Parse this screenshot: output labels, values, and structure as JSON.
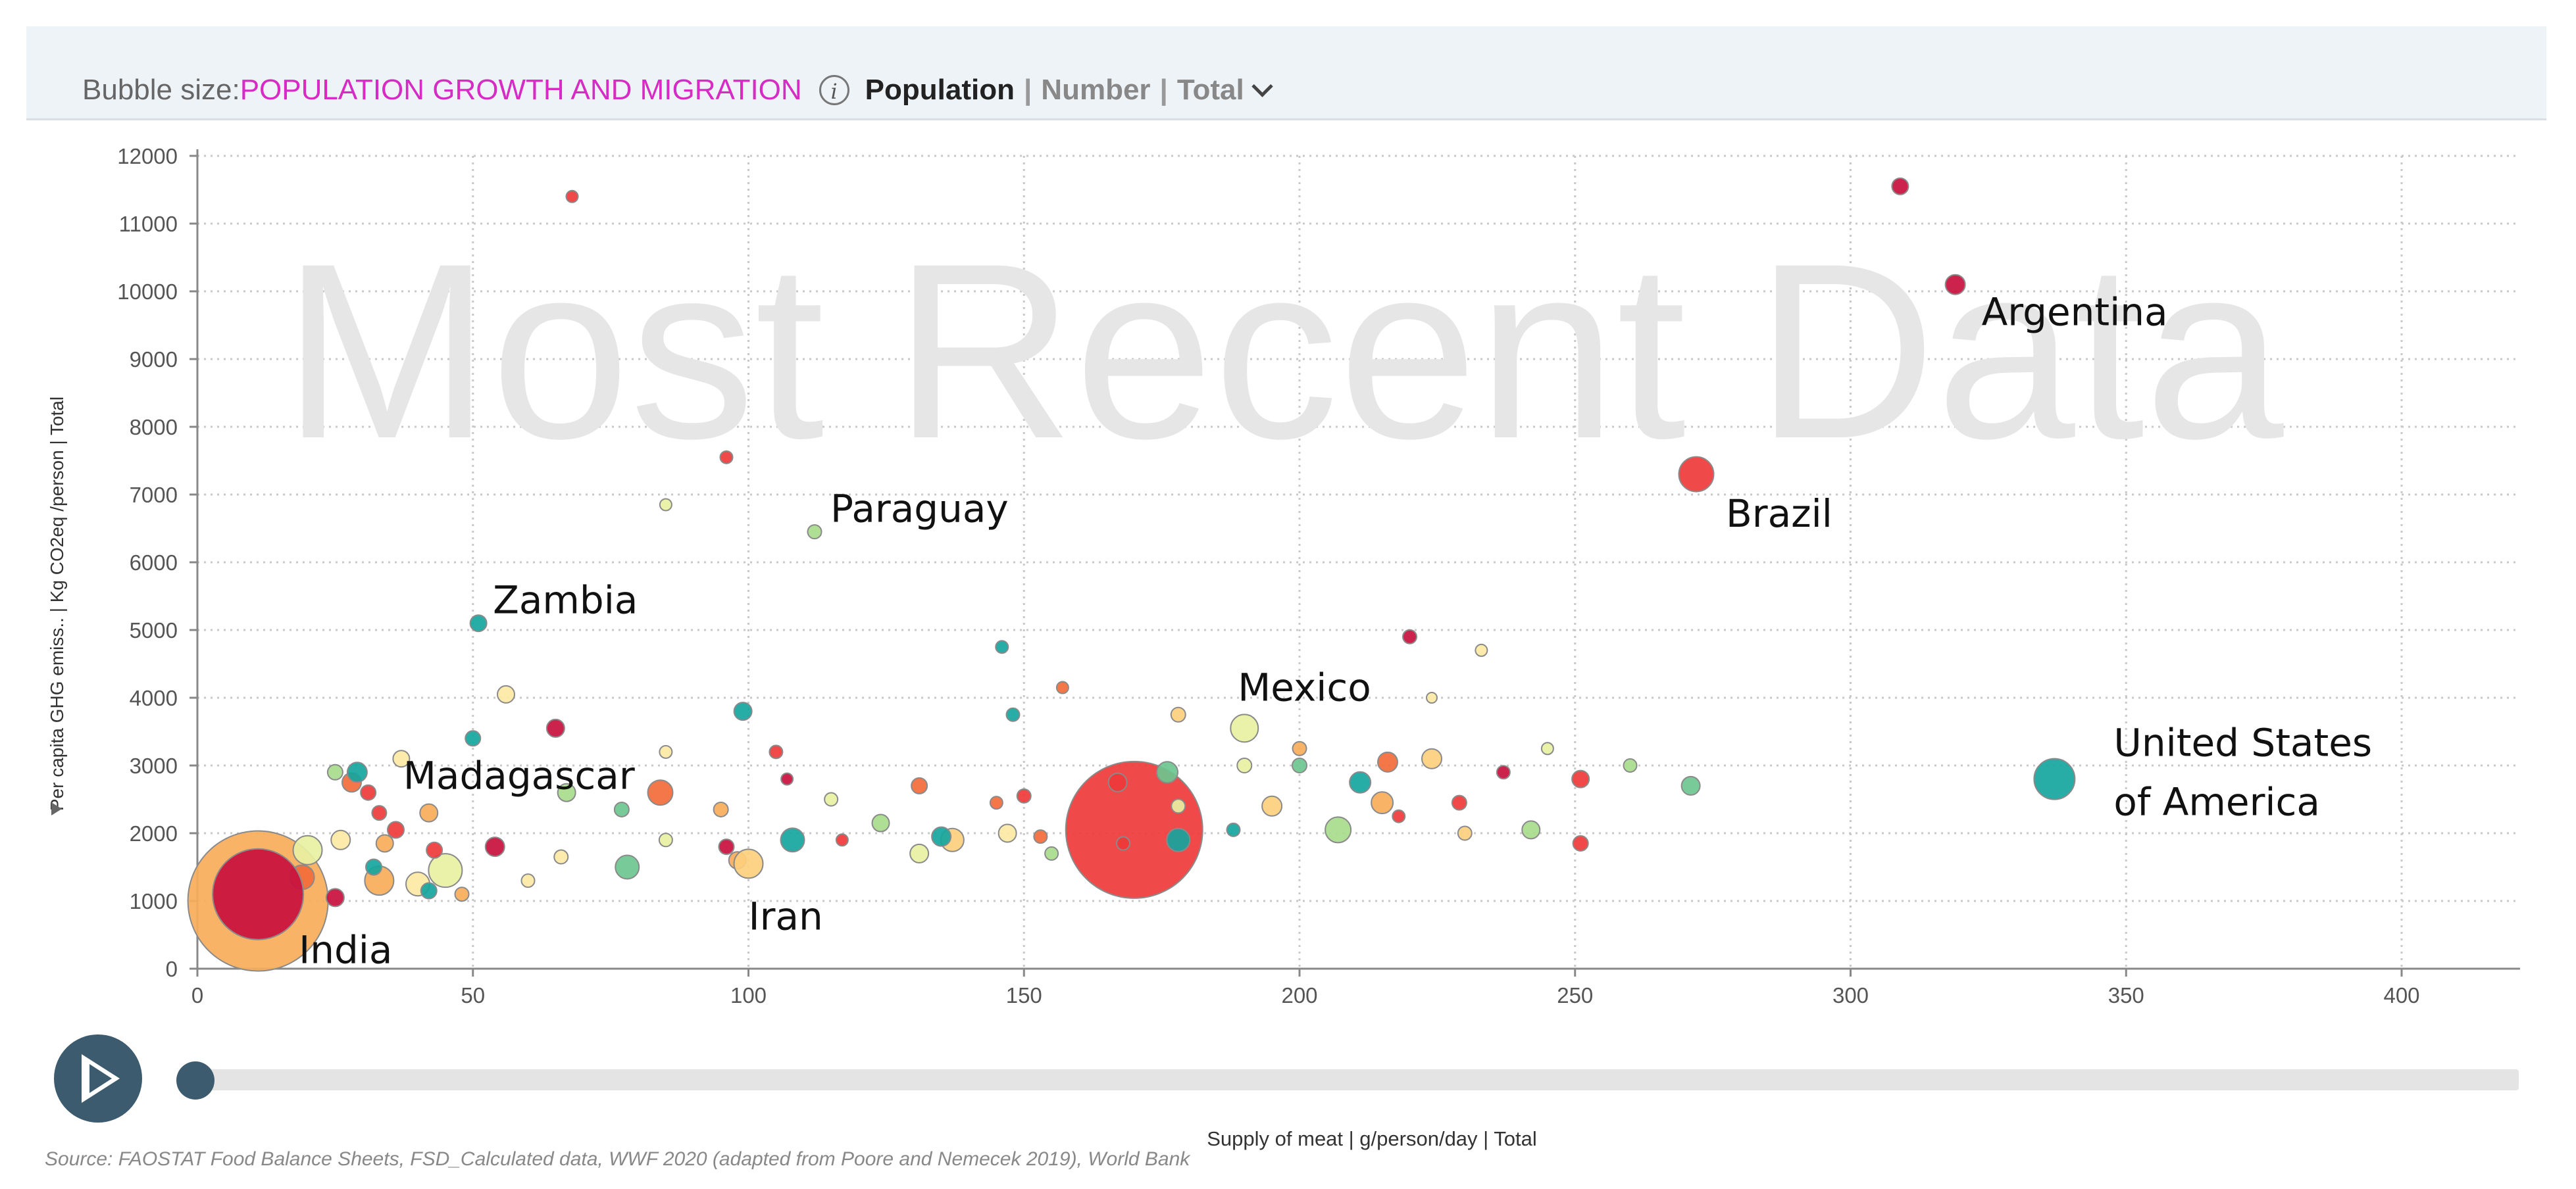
{
  "header": {
    "bubble_size_label": "Bubble size:",
    "bubble_size_value": "POPULATION GROWTH AND MIGRATION",
    "info_glyph": "i",
    "measure": "Population",
    "separator": "|",
    "unit": "Number",
    "aggregation": "Total"
  },
  "footer": {
    "source": "Source: FAOSTAT Food Balance Sheets, FSD_Calculated data, WWF 2020 (adapted from Poore and Nemecek 2019), World Bank"
  },
  "colors": {
    "dark_red": "#c8103e",
    "red": "#ee3a3a",
    "orange": "#f26b3a",
    "light_orange": "#f8ad5a",
    "peach": "#fdcf7e",
    "pale_yellow": "#fde9a5",
    "yellow_green": "#e8f0a2",
    "light_green": "#a8dc8c",
    "green": "#6cc58f",
    "teal": "#15a59e",
    "watermark": "#e6e6e6"
  },
  "chart_data": {
    "type": "scatter",
    "variant": "bubble",
    "watermark": "Most Recent Data",
    "xlabel": "Supply of meat | g/person/day | Total",
    "ylabel": "Per capita GHG emiss.. | Kg CO2eq /person | Total",
    "xlim": [
      0,
      420
    ],
    "ylim": [
      0,
      12000
    ],
    "x_ticks": [
      0,
      50,
      100,
      150,
      200,
      250,
      300,
      350,
      400
    ],
    "y_ticks": [
      0,
      1000,
      2000,
      3000,
      4000,
      5000,
      6000,
      7000,
      8000,
      9000,
      10000,
      11000,
      12000
    ],
    "grid": true,
    "size_encodes": "Population | Number | Total",
    "labeled_points": [
      {
        "label": "India",
        "x": 11,
        "y": 1100,
        "size": 130,
        "color": "dark_red"
      },
      {
        "label": "Iran",
        "x": 100,
        "y": 1550,
        "size": 36,
        "color": "peach"
      },
      {
        "label": "Madagascar",
        "x": 29,
        "y": 2900,
        "size": 22,
        "color": "teal"
      },
      {
        "label": "Zambia",
        "x": 51,
        "y": 5100,
        "size": 17,
        "color": "teal"
      },
      {
        "label": "Paraguay",
        "x": 112,
        "y": 6450,
        "size": 13,
        "color": "light_green"
      },
      {
        "label": "Mexico",
        "x": 190,
        "y": 3550,
        "size": 34,
        "color": "yellow_green"
      },
      {
        "label": "Brazil",
        "x": 272,
        "y": 7300,
        "size": 45,
        "color": "red"
      },
      {
        "label": "Argentina",
        "x": 319,
        "y": 10100,
        "size": 22,
        "color": "dark_red"
      },
      {
        "label": "United States of America",
        "x": 337,
        "y": 2800,
        "size": 54,
        "color": "teal"
      }
    ],
    "points": [
      {
        "x": 11,
        "y": 1000,
        "size": 205,
        "color": "light_orange"
      },
      {
        "x": 170,
        "y": 2050,
        "size": 200,
        "color": "red"
      },
      {
        "x": 68,
        "y": 11400,
        "size": 10,
        "color": "red"
      },
      {
        "x": 309,
        "y": 11550,
        "size": 17,
        "color": "dark_red"
      },
      {
        "x": 96,
        "y": 7550,
        "size": 11,
        "color": "red"
      },
      {
        "x": 85,
        "y": 6850,
        "size": 10,
        "color": "yellow_green"
      },
      {
        "x": 56,
        "y": 4050,
        "size": 18,
        "color": "pale_yellow"
      },
      {
        "x": 65,
        "y": 3550,
        "size": 19,
        "color": "dark_red"
      },
      {
        "x": 50,
        "y": 3400,
        "size": 15,
        "color": "teal"
      },
      {
        "x": 37,
        "y": 3100,
        "size": 17,
        "color": "pale_yellow"
      },
      {
        "x": 28,
        "y": 2750,
        "size": 21,
        "color": "orange"
      },
      {
        "x": 25,
        "y": 2900,
        "size": 15,
        "color": "light_green"
      },
      {
        "x": 31,
        "y": 2600,
        "size": 15,
        "color": "red"
      },
      {
        "x": 33,
        "y": 2300,
        "size": 14,
        "color": "red"
      },
      {
        "x": 42,
        "y": 2300,
        "size": 19,
        "color": "light_orange"
      },
      {
        "x": 36,
        "y": 2050,
        "size": 17,
        "color": "red"
      },
      {
        "x": 20,
        "y": 1750,
        "size": 36,
        "color": "yellow_green"
      },
      {
        "x": 26,
        "y": 1900,
        "size": 21,
        "color": "pale_yellow"
      },
      {
        "x": 34,
        "y": 1850,
        "size": 18,
        "color": "light_orange"
      },
      {
        "x": 45,
        "y": 1450,
        "size": 43,
        "color": "yellow_green"
      },
      {
        "x": 33,
        "y": 1300,
        "size": 36,
        "color": "light_orange"
      },
      {
        "x": 40,
        "y": 1250,
        "size": 28,
        "color": "pale_yellow"
      },
      {
        "x": 19,
        "y": 1350,
        "size": 29,
        "color": "orange"
      },
      {
        "x": 25,
        "y": 1050,
        "size": 19,
        "color": "dark_red"
      },
      {
        "x": 42,
        "y": 1150,
        "size": 16,
        "color": "teal"
      },
      {
        "x": 48,
        "y": 1100,
        "size": 13,
        "color": "light_orange"
      },
      {
        "x": 32,
        "y": 1500,
        "size": 16,
        "color": "teal"
      },
      {
        "x": 43,
        "y": 1750,
        "size": 16,
        "color": "red"
      },
      {
        "x": 54,
        "y": 1800,
        "size": 21,
        "color": "dark_red"
      },
      {
        "x": 67,
        "y": 2600,
        "size": 19,
        "color": "light_green"
      },
      {
        "x": 77,
        "y": 2350,
        "size": 14,
        "color": "green"
      },
      {
        "x": 84,
        "y": 2600,
        "size": 30,
        "color": "orange"
      },
      {
        "x": 85,
        "y": 3200,
        "size": 11,
        "color": "pale_yellow"
      },
      {
        "x": 78,
        "y": 1500,
        "size": 28,
        "color": "green"
      },
      {
        "x": 66,
        "y": 1650,
        "size": 13,
        "color": "pale_yellow"
      },
      {
        "x": 60,
        "y": 1300,
        "size": 12,
        "color": "pale_yellow"
      },
      {
        "x": 85,
        "y": 1900,
        "size": 12,
        "color": "yellow_green"
      },
      {
        "x": 95,
        "y": 2350,
        "size": 14,
        "color": "light_orange"
      },
      {
        "x": 99,
        "y": 3800,
        "size": 19,
        "color": "teal"
      },
      {
        "x": 105,
        "y": 3200,
        "size": 12,
        "color": "red"
      },
      {
        "x": 107,
        "y": 2800,
        "size": 10,
        "color": "dark_red"
      },
      {
        "x": 96,
        "y": 1800,
        "size": 15,
        "color": "dark_red"
      },
      {
        "x": 98,
        "y": 1600,
        "size": 18,
        "color": "light_orange"
      },
      {
        "x": 108,
        "y": 1900,
        "size": 28,
        "color": "teal"
      },
      {
        "x": 115,
        "y": 2500,
        "size": 12,
        "color": "yellow_green"
      },
      {
        "x": 117,
        "y": 1900,
        "size": 10,
        "color": "red"
      },
      {
        "x": 124,
        "y": 2150,
        "size": 18,
        "color": "light_green"
      },
      {
        "x": 131,
        "y": 2700,
        "size": 16,
        "color": "orange"
      },
      {
        "x": 131,
        "y": 1700,
        "size": 20,
        "color": "yellow_green"
      },
      {
        "x": 137,
        "y": 1900,
        "size": 27,
        "color": "peach"
      },
      {
        "x": 135,
        "y": 1950,
        "size": 21,
        "color": "teal"
      },
      {
        "x": 145,
        "y": 2450,
        "size": 11,
        "color": "orange"
      },
      {
        "x": 146,
        "y": 4750,
        "size": 11,
        "color": "teal"
      },
      {
        "x": 148,
        "y": 3750,
        "size": 12,
        "color": "teal"
      },
      {
        "x": 147,
        "y": 2000,
        "size": 19,
        "color": "pale_yellow"
      },
      {
        "x": 150,
        "y": 2550,
        "size": 13,
        "color": "red"
      },
      {
        "x": 153,
        "y": 1950,
        "size": 12,
        "color": "orange"
      },
      {
        "x": 155,
        "y": 1700,
        "size": 12,
        "color": "light_green"
      },
      {
        "x": 157,
        "y": 4150,
        "size": 10,
        "color": "orange"
      },
      {
        "x": 167,
        "y": 2750,
        "size": 20,
        "color": "red"
      },
      {
        "x": 168,
        "y": 1850,
        "size": 12,
        "color": "red"
      },
      {
        "x": 176,
        "y": 2900,
        "size": 24,
        "color": "green"
      },
      {
        "x": 178,
        "y": 1900,
        "size": 27,
        "color": "teal"
      },
      {
        "x": 178,
        "y": 3750,
        "size": 14,
        "color": "peach"
      },
      {
        "x": 178,
        "y": 2400,
        "size": 13,
        "color": "yellow_green"
      },
      {
        "x": 188,
        "y": 2050,
        "size": 12,
        "color": "teal"
      },
      {
        "x": 190,
        "y": 3000,
        "size": 14,
        "color": "yellow_green"
      },
      {
        "x": 195,
        "y": 2400,
        "size": 22,
        "color": "peach"
      },
      {
        "x": 200,
        "y": 3000,
        "size": 14,
        "color": "green"
      },
      {
        "x": 200,
        "y": 3250,
        "size": 13,
        "color": "light_orange"
      },
      {
        "x": 207,
        "y": 2050,
        "size": 31,
        "color": "light_green"
      },
      {
        "x": 211,
        "y": 2750,
        "size": 24,
        "color": "teal"
      },
      {
        "x": 215,
        "y": 2450,
        "size": 25,
        "color": "light_orange"
      },
      {
        "x": 216,
        "y": 3050,
        "size": 22,
        "color": "orange"
      },
      {
        "x": 218,
        "y": 2250,
        "size": 11,
        "color": "red"
      },
      {
        "x": 220,
        "y": 4900,
        "size": 13,
        "color": "dark_red"
      },
      {
        "x": 224,
        "y": 3100,
        "size": 22,
        "color": "peach"
      },
      {
        "x": 224,
        "y": 4000,
        "size": 8,
        "color": "pale_yellow"
      },
      {
        "x": 229,
        "y": 2450,
        "size": 14,
        "color": "red"
      },
      {
        "x": 230,
        "y": 2000,
        "size": 13,
        "color": "peach"
      },
      {
        "x": 233,
        "y": 4700,
        "size": 10,
        "color": "pale_yellow"
      },
      {
        "x": 237,
        "y": 2900,
        "size": 12,
        "color": "dark_red"
      },
      {
        "x": 242,
        "y": 2050,
        "size": 19,
        "color": "light_green"
      },
      {
        "x": 245,
        "y": 3250,
        "size": 10,
        "color": "yellow_green"
      },
      {
        "x": 251,
        "y": 2800,
        "size": 18,
        "color": "red"
      },
      {
        "x": 251,
        "y": 1850,
        "size": 15,
        "color": "red"
      },
      {
        "x": 260,
        "y": 3000,
        "size": 12,
        "color": "light_green"
      },
      {
        "x": 271,
        "y": 2700,
        "size": 20,
        "color": "green"
      }
    ]
  }
}
